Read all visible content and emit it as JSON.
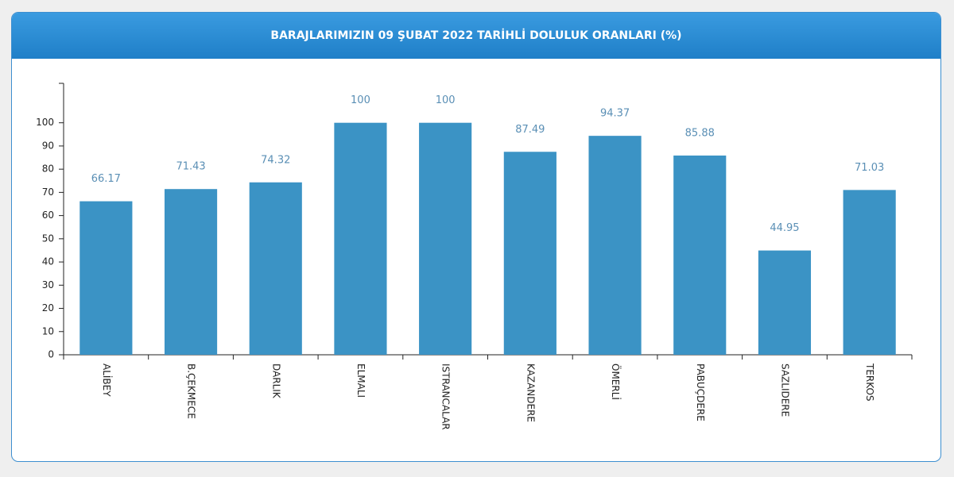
{
  "chart_data": {
    "type": "bar",
    "title": "BARAJLARIMIZIN 09 ŞUBAT 2022 TARİHLİ DOLULUK ORANLARI (%)",
    "categories": [
      "ALİBEY",
      "B.ÇEKMECE",
      "DARLIK",
      "ELMALI",
      "ISTRANCALAR",
      "KAZANDERE",
      "ÖMERLİ",
      "PABUÇDERE",
      "SAZLIDERE",
      "TERKOS"
    ],
    "values": [
      66.17,
      71.43,
      74.32,
      100,
      100,
      87.49,
      94.37,
      85.88,
      44.95,
      71.03
    ],
    "color": "#3b93c5",
    "ylim": [
      0,
      117
    ],
    "yticks": [
      0,
      10,
      20,
      30,
      40,
      50,
      60,
      70,
      80,
      90,
      100
    ]
  }
}
